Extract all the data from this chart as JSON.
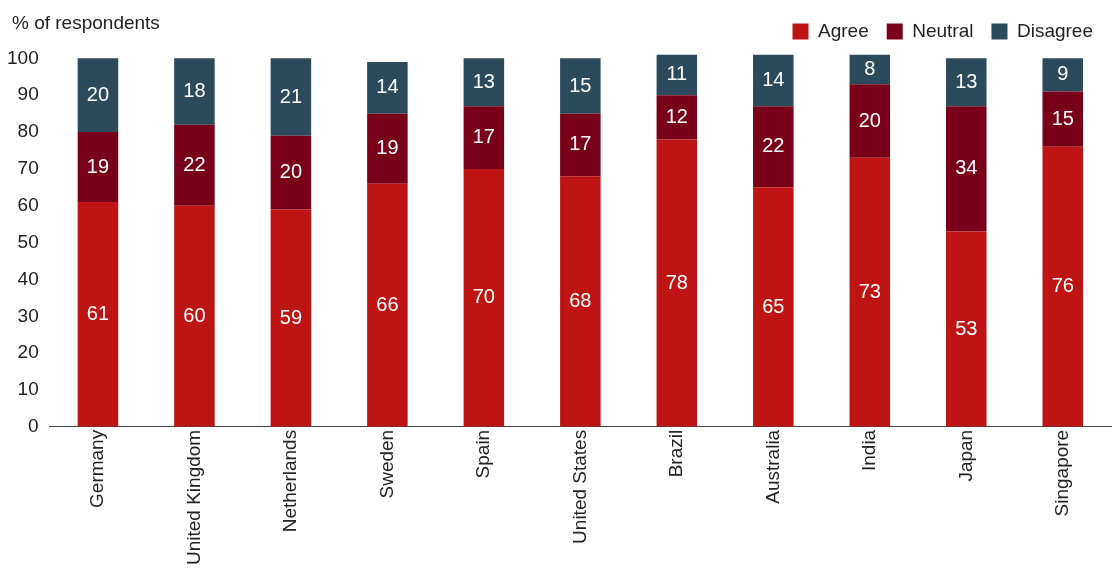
{
  "chart_data": {
    "type": "bar",
    "stacked": true,
    "ylabel": "% of respondents",
    "categories": [
      "Germany",
      "United Kingdom",
      "Netherlands",
      "Sweden",
      "Spain",
      "United States",
      "Brazil",
      "Australia",
      "India",
      "Japan",
      "Singapore"
    ],
    "series": [
      {
        "name": "Agree",
        "color": "#be1414",
        "values": [
          61,
          60,
          59,
          66,
          70,
          68,
          78,
          65,
          73,
          53,
          76
        ]
      },
      {
        "name": "Neutral",
        "color": "#780019",
        "values": [
          19,
          22,
          20,
          19,
          17,
          17,
          12,
          22,
          20,
          34,
          15
        ]
      },
      {
        "name": "Disagree",
        "color": "#2b4a5c",
        "values": [
          20,
          18,
          21,
          14,
          13,
          15,
          11,
          14,
          8,
          13,
          9
        ]
      }
    ],
    "ylim": [
      0,
      102
    ],
    "yticks": [
      0,
      10,
      20,
      30,
      40,
      50,
      60,
      70,
      80,
      90,
      100
    ],
    "grid": false,
    "legend": "top right",
    "data_labels": true
  }
}
